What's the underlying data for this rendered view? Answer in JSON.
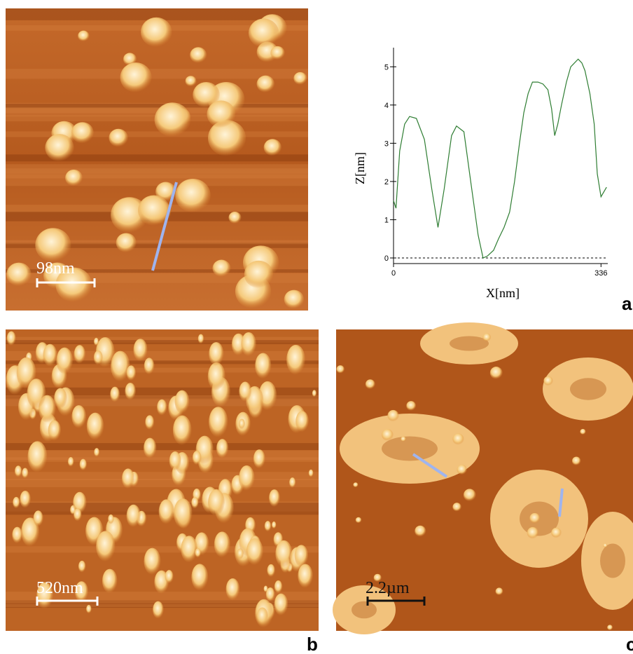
{
  "chart_data": {
    "type": "line",
    "xlabel": "X[nm]",
    "ylabel": "Z[nm]",
    "x": [
      0,
      4,
      10,
      18,
      26,
      37,
      50,
      62,
      72,
      82,
      94,
      102,
      114,
      125,
      137,
      145,
      152,
      162,
      170,
      179,
      188,
      196,
      204,
      211,
      218,
      225,
      234,
      242,
      250,
      256,
      261,
      266,
      272,
      280,
      287,
      299,
      305,
      310,
      318,
      325,
      330,
      336,
      345
    ],
    "values": [
      1.5,
      1.3,
      2.8,
      3.5,
      3.7,
      3.65,
      3.1,
      1.8,
      0.8,
      1.8,
      3.2,
      3.45,
      3.3,
      2.0,
      0.6,
      0.0,
      0.05,
      0.2,
      0.5,
      0.8,
      1.2,
      2.0,
      3.0,
      3.8,
      4.3,
      4.6,
      4.6,
      4.55,
      4.4,
      3.9,
      3.2,
      3.5,
      4.0,
      4.6,
      5.0,
      5.2,
      5.1,
      4.9,
      4.3,
      3.5,
      2.2,
      1.6,
      1.85
    ],
    "color": "#2e7d32",
    "xlim": [
      0,
      347
    ],
    "ylim": [
      0,
      5.5
    ],
    "xticks": [
      0,
      336
    ],
    "yticks": [
      0,
      1,
      2,
      3,
      4,
      5
    ]
  },
  "panels": [
    {
      "label": "a",
      "scale_bar": "98nm"
    },
    {
      "label": "b",
      "scale_bar": "520nm"
    },
    {
      "label": "c",
      "scale_bar": "2.2µm"
    }
  ]
}
